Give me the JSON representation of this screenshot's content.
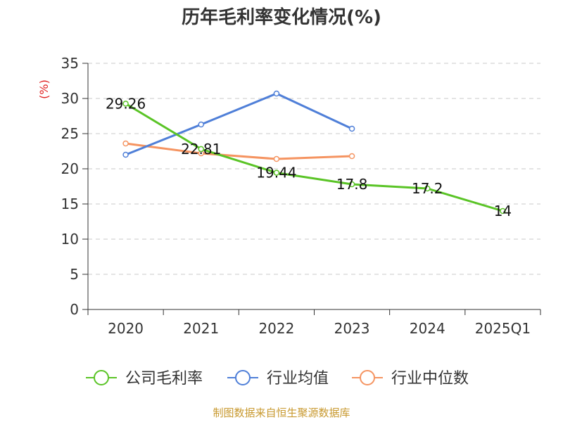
{
  "chart_data": {
    "type": "line",
    "title": "历年毛利率变化情况(%)",
    "ylabel": "(%)",
    "xlabel": "",
    "categories": [
      "2020",
      "2021",
      "2022",
      "2023",
      "2024",
      "2025Q1"
    ],
    "ylim": [
      0,
      35
    ],
    "yticks": [
      0,
      5,
      10,
      15,
      20,
      25,
      30,
      35
    ],
    "grid": "horizontal-dashed",
    "legend_position": "bottom",
    "series": [
      {
        "name": "公司毛利率",
        "color": "#5ac426",
        "values": [
          29.26,
          22.81,
          19.44,
          17.8,
          17.2,
          14
        ],
        "labels": [
          "29.26",
          "22.81",
          "19.44",
          "17.8",
          "17.2",
          "14"
        ]
      },
      {
        "name": "行业均值",
        "color": "#4f7fd8",
        "values": [
          22.0,
          26.3,
          30.7,
          25.7,
          null,
          null
        ]
      },
      {
        "name": "行业中位数",
        "color": "#f59461",
        "values": [
          23.6,
          22.2,
          21.4,
          21.8,
          null,
          null
        ]
      }
    ]
  },
  "source": "制图数据来自恒生聚源数据库"
}
